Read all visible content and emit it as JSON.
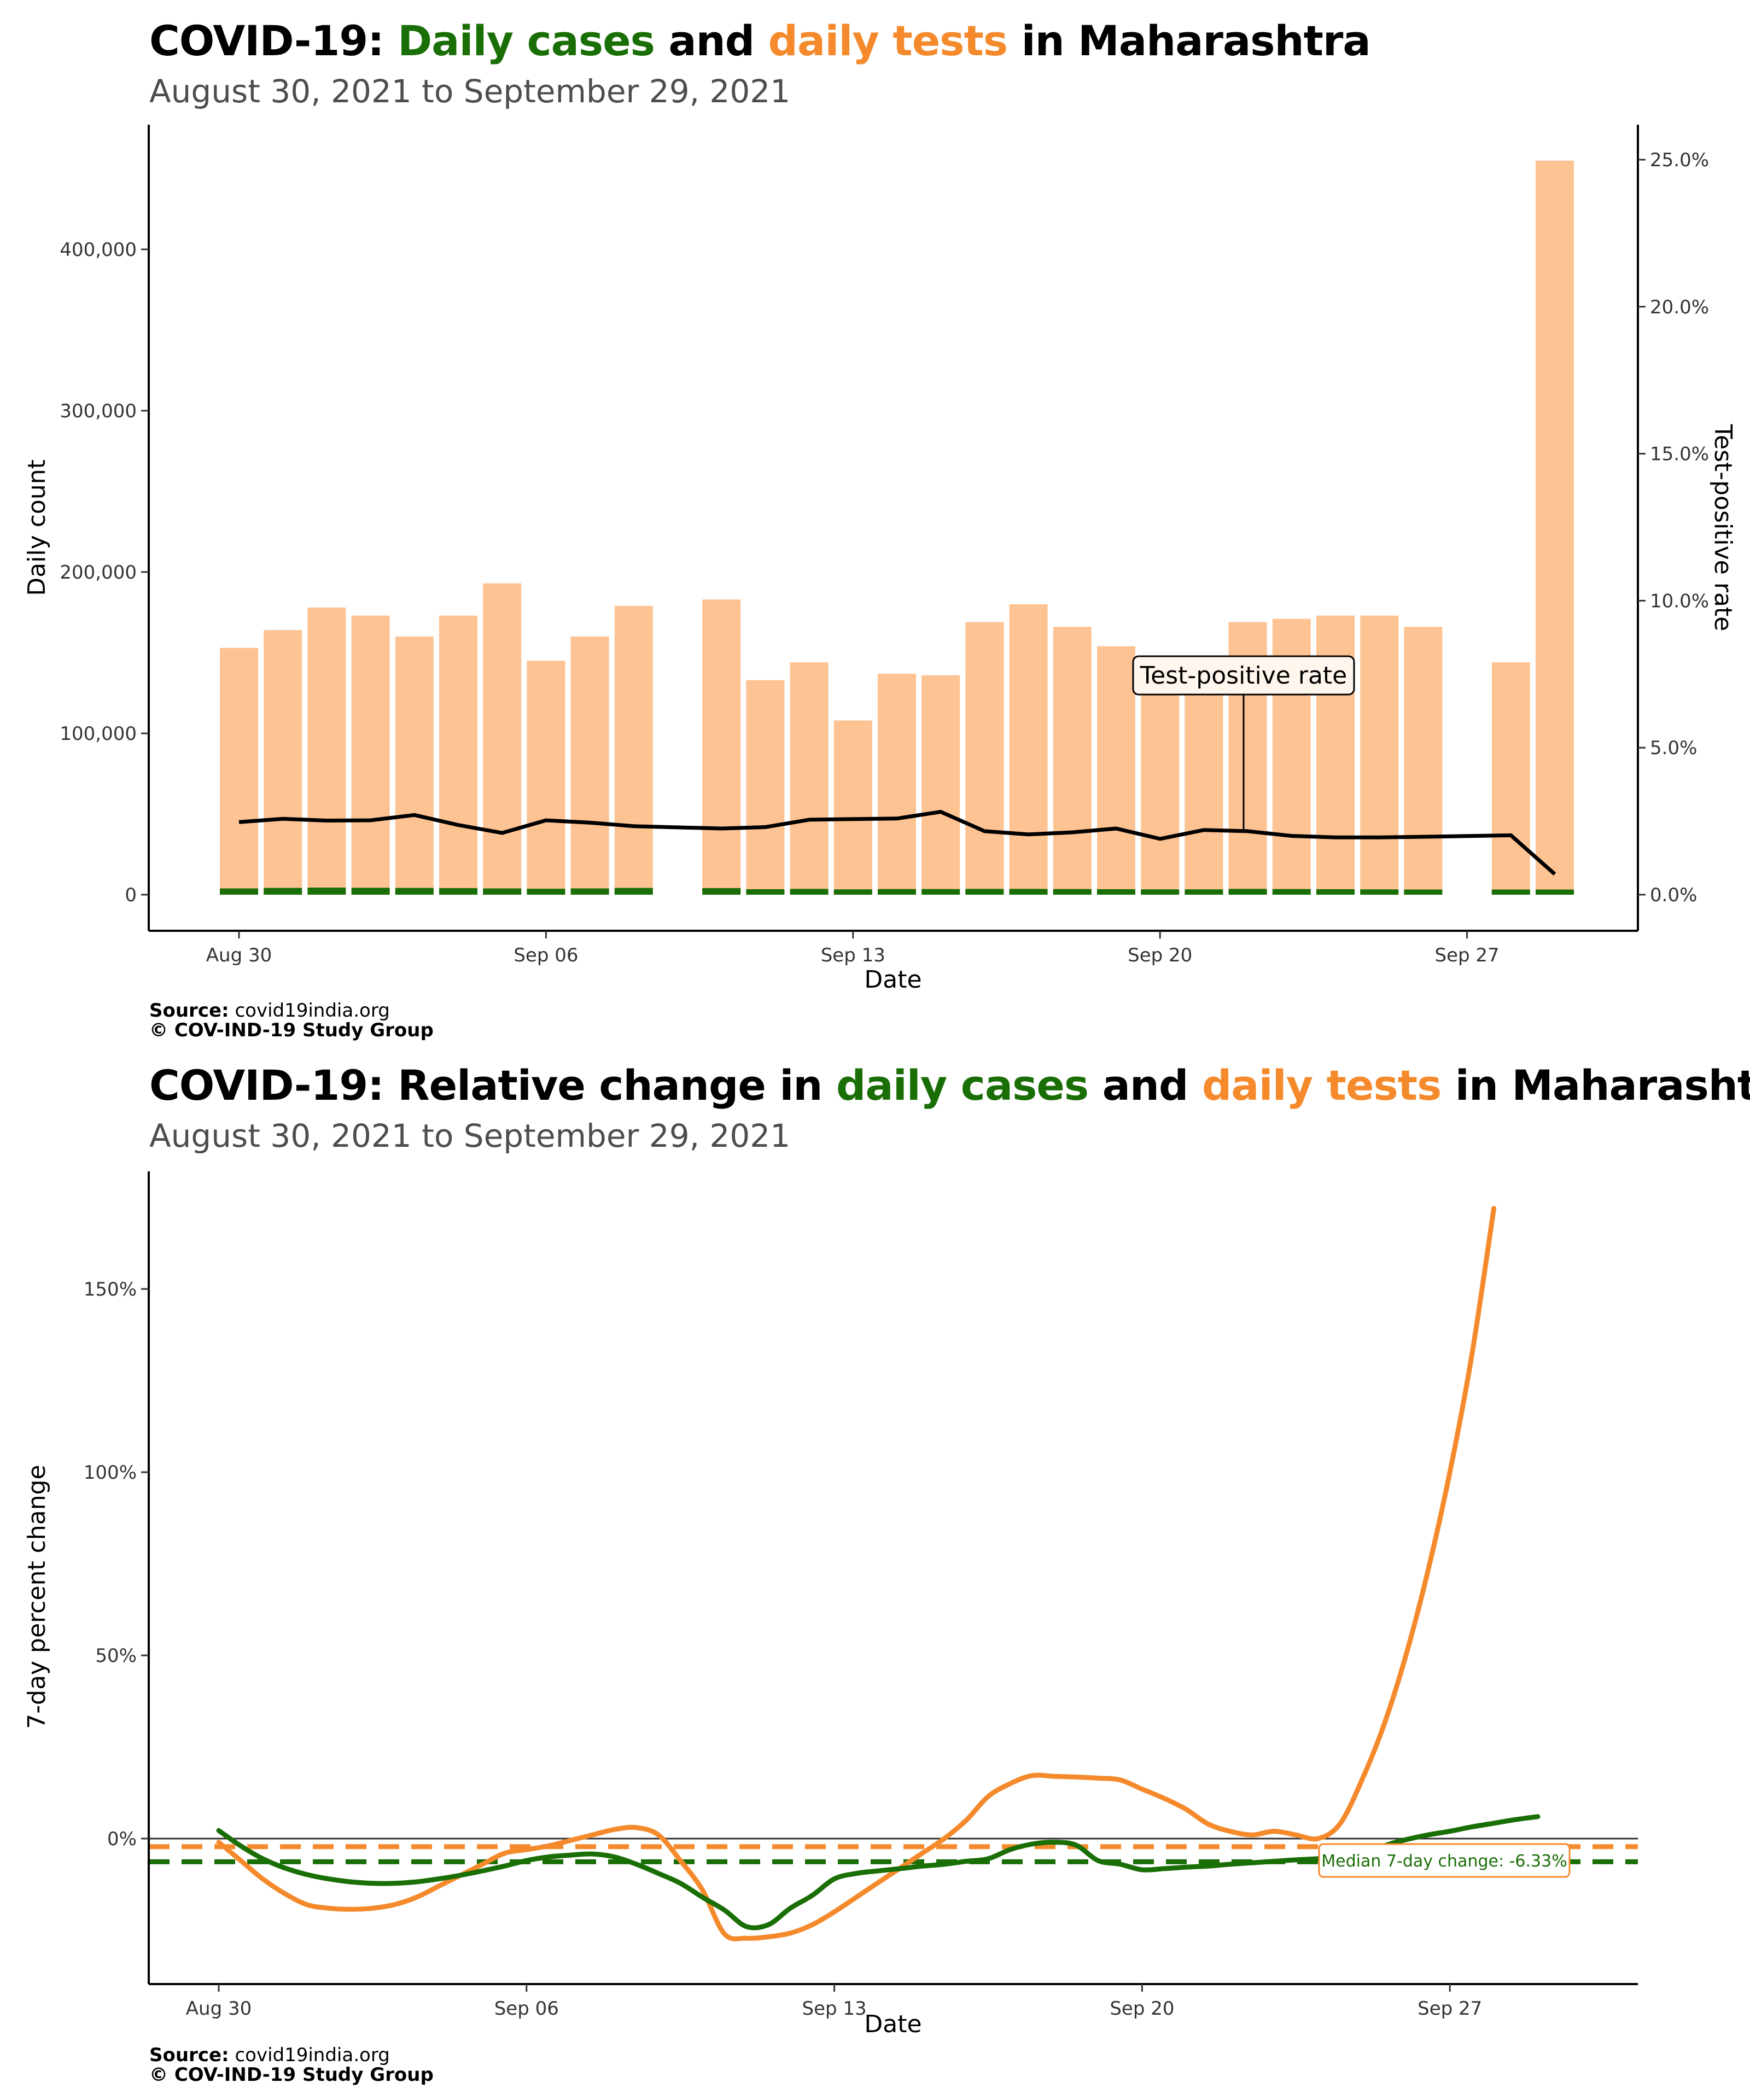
{
  "chart1": {
    "title_prefix": "COVID-19: ",
    "title_green": "Daily cases",
    "title_and": " and ",
    "title_orange": "daily tests",
    "title_suffix": " in Maharashtra",
    "subtitle": "August 30, 2021 to September 29, 2021",
    "source_label": "Source:",
    "source_text": " covid19india.org",
    "copyright": "© COV-IND-19 Study Group"
  },
  "chart2": {
    "title_prefix": "COVID-19: Relative change in ",
    "title_green": "daily cases",
    "title_and": " and ",
    "title_orange": "daily tests",
    "title_suffix": " in Maharashtra",
    "subtitle": "August 30, 2021 to September 29, 2021",
    "source_label": "Source:",
    "source_text": " covid19india.org",
    "copyright": "© COV-IND-19 Study Group"
  },
  "colors": {
    "cases": "#1a6e06",
    "tests": "#f58a2c",
    "tests_bar": "#fec393",
    "tpr": "#000000"
  },
  "chart_data": [
    {
      "type": "bar",
      "xlabel": "Date",
      "ylabel": "Daily count",
      "y2label": "Test-positive rate",
      "ylim": [
        0,
        460000
      ],
      "y2lim": [
        0,
        0.25
      ],
      "x_ticks": [
        "Aug 30",
        "Sep 06",
        "Sep 13",
        "Sep 20",
        "Sep 27"
      ],
      "y_ticks": [
        "0",
        "100,000",
        "200,000",
        "300,000",
        "400,000"
      ],
      "y_tick_values": [
        0,
        100000,
        200000,
        300000,
        400000
      ],
      "y2_ticks": [
        "0.0%",
        "5.0%",
        "10.0%",
        "15.0%",
        "20.0%",
        "25.0%"
      ],
      "y2_tick_values": [
        0,
        0.05,
        0.1,
        0.15,
        0.2,
        0.25
      ],
      "annotation": "Test-positive rate",
      "days": [
        0,
        1,
        2,
        3,
        4,
        5,
        6,
        7,
        8,
        9,
        11,
        12,
        13,
        14,
        15,
        16,
        17,
        18,
        19,
        20,
        21,
        22,
        23,
        24,
        25,
        26,
        27,
        29,
        30
      ],
      "tests": [
        153000,
        164000,
        178000,
        173000,
        160000,
        173000,
        193000,
        145000,
        160000,
        179000,
        183000,
        133000,
        144000,
        108000,
        137000,
        136000,
        169000,
        180000,
        166000,
        154000,
        136000,
        140000,
        169000,
        171000,
        173000,
        173000,
        166000,
        144000,
        455000
      ],
      "cases": [
        3900,
        4200,
        4400,
        4300,
        4200,
        4100,
        3900,
        3700,
        3900,
        4200,
        4100,
        3400,
        3600,
        3300,
        3500,
        3500,
        3600,
        3600,
        3500,
        3400,
        3300,
        3300,
        3600,
        3500,
        3400,
        3300,
        3200,
        3200,
        3200
      ],
      "tpr_days": [
        0,
        1,
        2,
        3,
        4,
        5,
        6,
        7,
        8,
        9,
        11,
        12,
        13,
        14,
        15,
        16,
        17,
        18,
        19,
        20,
        21,
        22,
        23,
        24,
        25,
        26,
        27,
        29,
        30
      ],
      "tpr": [
        0.0247,
        0.0258,
        0.0252,
        0.0253,
        0.0271,
        0.0237,
        0.021,
        0.0253,
        0.0245,
        0.0233,
        0.0225,
        0.023,
        0.0255,
        0.0257,
        0.0259,
        0.0282,
        0.0216,
        0.0205,
        0.0212,
        0.0225,
        0.019,
        0.022,
        0.0216,
        0.02,
        0.0195,
        0.0195,
        0.0197,
        0.0202,
        0.007
      ]
    },
    {
      "type": "line",
      "xlabel": "Date",
      "ylabel": "7-day percent change",
      "ylim": [
        -0.36,
        1.82
      ],
      "x_ticks": [
        "Aug 30",
        "Sep 06",
        "Sep 13",
        "Sep 20",
        "Sep 27"
      ],
      "y_ticks": [
        "0%",
        "50%",
        "100%",
        "150%"
      ],
      "y_tick_values": [
        0,
        0.5,
        1.0,
        1.5
      ],
      "median_label": "Median 7-day change: -6.33%",
      "median_cases": -0.0633,
      "median_tests": -0.022,
      "series": [
        {
          "name": "daily cases",
          "x": [
            0,
            0.5,
            1,
            1.5,
            2,
            2.5,
            3,
            3.5,
            4,
            4.5,
            5,
            5.5,
            6,
            6.5,
            7,
            7.5,
            8,
            8.5,
            9,
            9.5,
            10,
            10.5,
            11,
            11.5,
            12,
            12.5,
            13,
            13.5,
            14,
            14.5,
            15,
            15.5,
            16,
            16.5,
            17,
            17.5,
            18,
            18.5,
            19,
            19.5,
            20,
            20.5,
            21,
            21.5,
            22,
            22.5,
            23,
            23.5,
            24,
            24.5,
            25,
            25.5,
            26,
            26.5,
            27,
            27.5,
            28,
            28.5,
            29,
            29.5,
            30
          ],
          "values": [
            0.022,
            -0.02,
            -0.055,
            -0.08,
            -0.098,
            -0.11,
            -0.118,
            -0.122,
            -0.122,
            -0.118,
            -0.11,
            -0.1,
            -0.088,
            -0.075,
            -0.06,
            -0.05,
            -0.045,
            -0.042,
            -0.05,
            -0.07,
            -0.095,
            -0.122,
            -0.16,
            -0.195,
            -0.24,
            -0.235,
            -0.19,
            -0.155,
            -0.11,
            -0.095,
            -0.088,
            -0.082,
            -0.075,
            -0.07,
            -0.062,
            -0.055,
            -0.03,
            -0.015,
            -0.01,
            -0.018,
            -0.06,
            -0.07,
            -0.085,
            -0.082,
            -0.078,
            -0.075,
            -0.07,
            -0.066,
            -0.062,
            -0.058,
            -0.055,
            -0.052,
            -0.048,
            -0.02,
            -0.003,
            0.01,
            0.02,
            0.032,
            0.042,
            0.052,
            0.06
          ]
        },
        {
          "name": "daily tests",
          "x": [
            0,
            0.5,
            1,
            1.5,
            2,
            2.5,
            3,
            3.5,
            4,
            4.5,
            5,
            5.5,
            6,
            6.5,
            7,
            7.5,
            8,
            8.5,
            9,
            9.5,
            10,
            10.5,
            11,
            11.5,
            12,
            12.5,
            13,
            13.5,
            14,
            14.5,
            15,
            15.5,
            16,
            16.5,
            17,
            17.5,
            18,
            18.5,
            19,
            19.5,
            20,
            20.5,
            21,
            21.5,
            22,
            22.5,
            23,
            23.5,
            24,
            24.5,
            25,
            25.5,
            26,
            26.5,
            27,
            27.5,
            28,
            28.5,
            29,
            29.5,
            30
          ],
          "values": [
            -0.01,
            -0.06,
            -0.11,
            -0.15,
            -0.18,
            -0.19,
            -0.193,
            -0.19,
            -0.18,
            -0.16,
            -0.13,
            -0.1,
            -0.07,
            -0.04,
            -0.03,
            -0.02,
            -0.005,
            0.01,
            0.025,
            0.03,
            0.01,
            -0.06,
            -0.14,
            -0.26,
            -0.272,
            -0.268,
            -0.258,
            -0.235,
            -0.2,
            -0.16,
            -0.12,
            -0.08,
            -0.04,
            0.0,
            0.05,
            0.115,
            0.15,
            0.172,
            0.17,
            0.168,
            0.165,
            0.16,
            0.135,
            0.11,
            0.08,
            0.04,
            0.02,
            0.01,
            0.02,
            0.01,
            0.0,
            0.04,
            0.16,
            0.31,
            0.5,
            0.73,
            1.0,
            1.32,
            1.72,
            1.72,
            1.72
          ]
        }
      ]
    }
  ]
}
